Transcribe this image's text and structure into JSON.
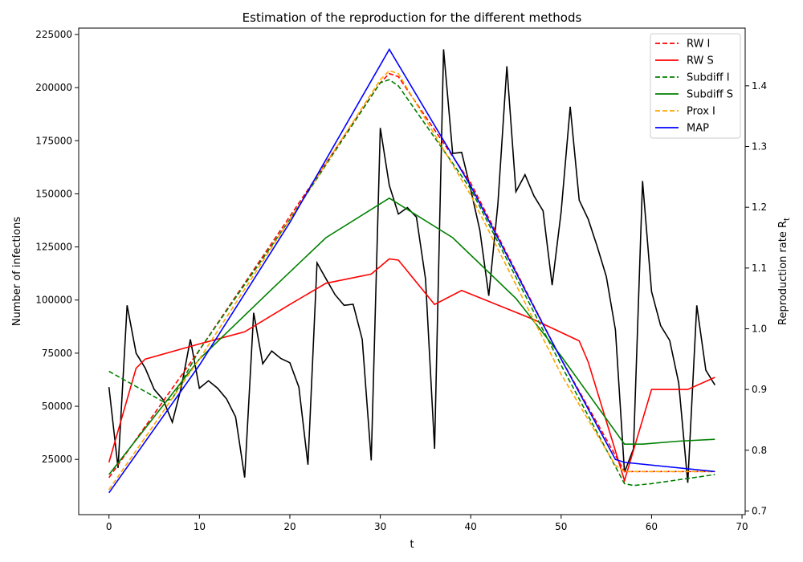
{
  "chart_data": {
    "type": "line",
    "title": "Estimation of the reproduction for the different methods",
    "xlabel": "t",
    "ylabel_left": "Number of infections",
    "ylabel_right": "Reproduction rate R",
    "ylabel_right_subscript": "t",
    "xlim": [
      -3.35,
      70.35
    ],
    "ylim_left": [
      -1000,
      228000
    ],
    "ylim_right": [
      0.694,
      1.495
    ],
    "x_ticks": [
      0,
      10,
      20,
      30,
      40,
      50,
      60,
      70
    ],
    "y_left_ticks": [
      25000,
      50000,
      75000,
      100000,
      125000,
      150000,
      175000,
      200000,
      225000
    ],
    "y_right_ticks": [
      0.7,
      0.8,
      0.9,
      1.0,
      1.1,
      1.2,
      1.3,
      1.4
    ],
    "legend_position": "top-right",
    "infections": {
      "axis": "left",
      "color": "#000000",
      "x": [
        0,
        1,
        2,
        3,
        4,
        5,
        6,
        7,
        8,
        9,
        10,
        11,
        12,
        13,
        14,
        15,
        16,
        17,
        18,
        19,
        20,
        21,
        22,
        23,
        24,
        25,
        26,
        27,
        28,
        29,
        30,
        31,
        32,
        33,
        34,
        35,
        36,
        37,
        38,
        39,
        40,
        41,
        42,
        43,
        44,
        45,
        46,
        47,
        48,
        49,
        50,
        51,
        52,
        53,
        54,
        55,
        56,
        57,
        58,
        59,
        60,
        61,
        62,
        63,
        64,
        65,
        66,
        67
      ],
      "values": [
        59000,
        21000,
        97500,
        75000,
        68000,
        58000,
        53000,
        42500,
        59000,
        81500,
        58500,
        62000,
        58500,
        53500,
        45000,
        16500,
        94000,
        70000,
        76000,
        72500,
        70500,
        59000,
        22500,
        117500,
        110000,
        102500,
        97500,
        98000,
        81500,
        24500,
        181000,
        154000,
        140500,
        143500,
        139000,
        110000,
        30000,
        218000,
        169000,
        169500,
        152000,
        133000,
        102000,
        145000,
        210000,
        151000,
        159000,
        149000,
        142000,
        107000,
        141500,
        191000,
        147000,
        138000,
        125000,
        111000,
        86000,
        19000,
        30000,
        156000,
        104000,
        88000,
        81000,
        61000,
        14000,
        97500,
        67000,
        60000
      ]
    },
    "series": [
      {
        "name": "RW I",
        "color": "#ff0000",
        "dash": "dashed",
        "x": [
          0,
          10,
          20,
          30,
          31,
          32,
          40,
          50,
          57,
          58,
          60,
          67
        ],
        "values": [
          0.755,
          0.965,
          1.185,
          1.405,
          1.42,
          1.415,
          1.24,
          0.95,
          0.765,
          0.765,
          0.765,
          0.765
        ]
      },
      {
        "name": "RW S",
        "color": "#ff0000",
        "dash": "solid",
        "x": [
          0,
          3,
          4,
          10,
          15,
          20,
          24,
          29,
          31,
          32,
          36,
          39,
          47,
          52,
          53,
          57,
          60,
          64,
          67
        ],
        "values": [
          0.78,
          0.935,
          0.95,
          0.975,
          0.995,
          1.04,
          1.075,
          1.09,
          1.115,
          1.113,
          1.04,
          1.063,
          1.015,
          0.98,
          0.945,
          0.75,
          0.9,
          0.9,
          0.92
        ]
      },
      {
        "name": "Subdiff I",
        "color": "#008000",
        "dash": "dashed",
        "x": [
          0,
          3,
          6,
          7,
          10,
          20,
          30,
          31,
          32,
          40,
          50,
          57,
          58,
          60,
          67
        ],
        "values": [
          0.93,
          0.905,
          0.88,
          0.885,
          0.965,
          1.18,
          1.405,
          1.41,
          1.4,
          1.23,
          0.94,
          0.745,
          0.742,
          0.745,
          0.76
        ]
      },
      {
        "name": "Subdiff S",
        "color": "#008000",
        "dash": "solid",
        "x": [
          0,
          10,
          18,
          24,
          31,
          38,
          45,
          50,
          57,
          59,
          63,
          67
        ],
        "values": [
          0.76,
          0.95,
          1.065,
          1.15,
          1.215,
          1.15,
          1.05,
          0.955,
          0.81,
          0.81,
          0.815,
          0.818
        ]
      },
      {
        "name": "Prox I",
        "color": "#ffa500",
        "dash": "dashed",
        "x": [
          0,
          10,
          20,
          30,
          31,
          32,
          40,
          50,
          56,
          57,
          60,
          67
        ],
        "values": [
          0.735,
          0.95,
          1.18,
          1.41,
          1.425,
          1.42,
          1.22,
          0.925,
          0.775,
          0.765,
          0.765,
          0.765
        ]
      },
      {
        "name": "MAP",
        "color": "#0000ff",
        "dash": "solid",
        "x": [
          0,
          10,
          20,
          31,
          40,
          50,
          56,
          57,
          67
        ],
        "values": [
          0.73,
          0.94,
          1.175,
          1.46,
          1.235,
          0.95,
          0.785,
          0.78,
          0.765
        ]
      }
    ]
  }
}
